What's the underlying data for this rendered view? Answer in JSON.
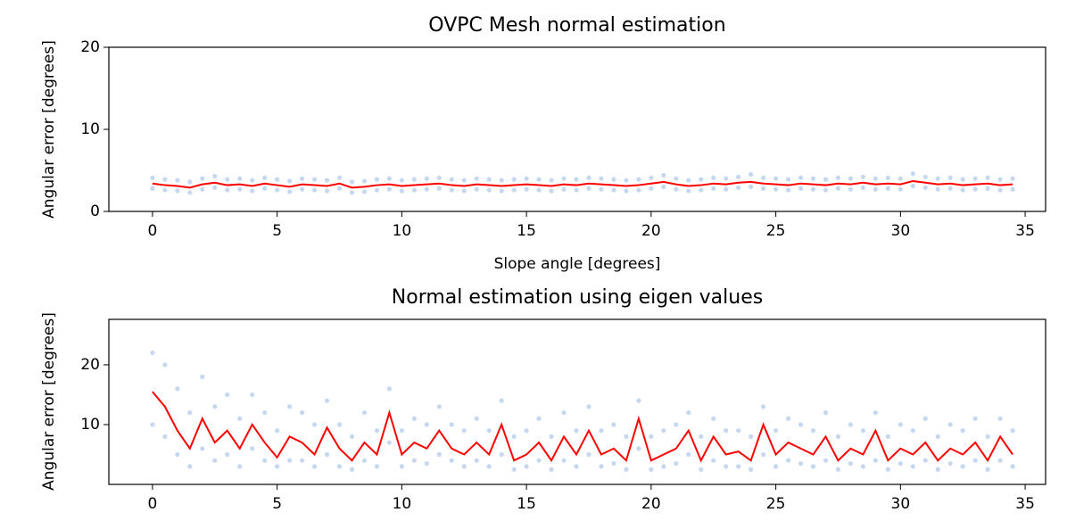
{
  "chart_data": [
    {
      "type": "line",
      "title": "OVPC Mesh normal estimation",
      "xlabel": "Slope angle [degrees]",
      "ylabel": "Angular error [degrees]",
      "xlim": [
        -1.75,
        35.82
      ],
      "ylim": [
        0,
        20
      ],
      "xticks": [
        0,
        5,
        10,
        15,
        20,
        25,
        30,
        35
      ],
      "yticks": [
        0,
        10,
        20
      ],
      "x": [
        0,
        0.5,
        1,
        1.5,
        2,
        2.5,
        3,
        3.5,
        4,
        4.5,
        5,
        5.5,
        6,
        6.5,
        7,
        7.5,
        8,
        8.5,
        9,
        9.5,
        10,
        10.5,
        11,
        11.5,
        12,
        12.5,
        13,
        13.5,
        14,
        14.5,
        15,
        15.5,
        16,
        16.5,
        17,
        17.5,
        18,
        18.5,
        19,
        19.5,
        20,
        20.5,
        21,
        21.5,
        22,
        22.5,
        23,
        23.5,
        24,
        24.5,
        25,
        25.5,
        26,
        26.5,
        27,
        27.5,
        28,
        28.5,
        29,
        29.5,
        30,
        30.5,
        31,
        31.5,
        32,
        32.5,
        33,
        33.5,
        34,
        34.5
      ],
      "series": [
        {
          "type": "scatter",
          "color": "#aec7e8",
          "values": [
            4.1,
            3.9,
            3.8,
            3.6,
            4.0,
            4.3,
            3.9,
            4.0,
            3.8,
            4.1,
            3.9,
            3.7,
            4.0,
            3.9,
            3.8,
            4.1,
            3.6,
            3.7,
            3.9,
            4.0,
            3.8,
            3.9,
            4.0,
            4.1,
            3.9,
            3.8,
            4.0,
            3.9,
            3.8,
            3.9,
            4.0,
            3.9,
            3.8,
            4.0,
            3.9,
            4.1,
            4.0,
            3.9,
            3.8,
            3.9,
            4.1,
            4.4,
            4.0,
            3.8,
            3.9,
            4.1,
            4.0,
            4.2,
            4.5,
            4.1,
            4.0,
            3.9,
            4.1,
            4.0,
            3.9,
            4.1,
            4.0,
            4.2,
            4.0,
            4.1,
            4.0,
            4.6,
            4.2,
            4.0,
            4.1,
            3.9,
            4.0,
            4.1,
            3.9,
            4.0
          ]
        },
        {
          "type": "scatter",
          "color": "#aec7e8",
          "values": [
            2.8,
            2.6,
            2.5,
            2.3,
            2.7,
            2.9,
            2.6,
            2.7,
            2.5,
            2.8,
            2.6,
            2.4,
            2.7,
            2.6,
            2.5,
            2.8,
            2.3,
            2.4,
            2.6,
            2.7,
            2.5,
            2.6,
            2.7,
            2.8,
            2.6,
            2.5,
            2.7,
            2.6,
            2.5,
            2.6,
            2.7,
            2.6,
            2.5,
            2.7,
            2.6,
            2.8,
            2.7,
            2.6,
            2.5,
            2.6,
            2.8,
            3.0,
            2.7,
            2.5,
            2.6,
            2.8,
            2.7,
            2.9,
            3.0,
            2.8,
            2.7,
            2.6,
            2.8,
            2.7,
            2.6,
            2.8,
            2.7,
            2.9,
            2.7,
            2.8,
            2.7,
            3.1,
            2.9,
            2.7,
            2.8,
            2.6,
            2.7,
            2.8,
            2.6,
            2.7
          ]
        },
        {
          "type": "line",
          "color": "#ff0000",
          "values": [
            3.4,
            3.2,
            3.1,
            2.9,
            3.3,
            3.5,
            3.2,
            3.3,
            3.1,
            3.4,
            3.2,
            3.0,
            3.3,
            3.2,
            3.1,
            3.4,
            2.9,
            3.0,
            3.2,
            3.3,
            3.1,
            3.2,
            3.3,
            3.4,
            3.2,
            3.1,
            3.3,
            3.2,
            3.1,
            3.2,
            3.3,
            3.2,
            3.1,
            3.3,
            3.2,
            3.4,
            3.3,
            3.2,
            3.1,
            3.2,
            3.4,
            3.6,
            3.3,
            3.1,
            3.2,
            3.4,
            3.3,
            3.5,
            3.6,
            3.4,
            3.3,
            3.2,
            3.4,
            3.3,
            3.2,
            3.4,
            3.3,
            3.5,
            3.3,
            3.4,
            3.3,
            3.7,
            3.5,
            3.3,
            3.4,
            3.2,
            3.3,
            3.4,
            3.2,
            3.3
          ]
        }
      ]
    },
    {
      "type": "line",
      "title": "Normal estimation using eigen values",
      "ylabel": "Angular error [degrees]",
      "xlim": [
        -1.75,
        35.82
      ],
      "ylim": [
        0,
        27.6
      ],
      "xticks": [
        0,
        5,
        10,
        15,
        20,
        25,
        30,
        35
      ],
      "yticks": [
        10,
        20
      ],
      "x": [
        0,
        0.5,
        1,
        1.5,
        2,
        2.5,
        3,
        3.5,
        4,
        4.5,
        5,
        5.5,
        6,
        6.5,
        7,
        7.5,
        8,
        8.5,
        9,
        9.5,
        10,
        10.5,
        11,
        11.5,
        12,
        12.5,
        13,
        13.5,
        14,
        14.5,
        15,
        15.5,
        16,
        16.5,
        17,
        17.5,
        18,
        18.5,
        19,
        19.5,
        20,
        20.5,
        21,
        21.5,
        22,
        22.5,
        23,
        23.5,
        24,
        24.5,
        25,
        25.5,
        26,
        26.5,
        27,
        27.5,
        28,
        28.5,
        29,
        29.5,
        30,
        30.5,
        31,
        31.5,
        32,
        32.5,
        33,
        33.5,
        34,
        34.5
      ],
      "series": [
        {
          "type": "scatter",
          "color": "#aec7e8",
          "values": [
            22,
            20,
            16,
            12,
            18,
            13,
            15,
            11,
            15,
            12,
            9,
            13,
            12,
            10,
            14,
            10,
            8,
            12,
            9,
            16,
            9,
            11,
            10,
            13,
            10,
            9,
            11,
            9,
            14,
            8,
            9,
            11,
            8,
            12,
            9,
            13,
            9,
            10,
            8,
            14,
            8,
            9,
            10,
            12,
            8,
            11,
            9,
            9,
            8,
            13,
            9,
            11,
            10,
            9,
            12,
            8,
            10,
            9,
            12,
            8,
            10,
            9,
            11,
            8,
            10,
            9,
            11,
            8,
            11,
            9
          ]
        },
        {
          "type": "scatter",
          "color": "#aec7e8",
          "values": [
            10,
            8,
            5,
            3,
            6,
            4,
            5,
            3,
            6,
            4,
            3,
            4,
            4,
            3,
            5,
            3,
            2.5,
            4,
            3,
            7,
            3,
            4,
            3.5,
            5,
            4,
            3,
            4,
            3,
            5,
            2.5,
            3,
            4,
            2.5,
            4,
            3,
            5,
            3,
            3.5,
            2.5,
            6,
            2.5,
            3,
            3.5,
            5,
            2.5,
            4,
            3,
            3,
            2.5,
            5,
            3,
            4,
            3.5,
            3,
            4,
            2.5,
            3.5,
            3,
            4,
            2.5,
            3.5,
            3,
            4,
            2.5,
            3.5,
            3,
            4,
            2.5,
            4,
            3
          ]
        },
        {
          "type": "line",
          "color": "#ff0000",
          "values": [
            15.5,
            13,
            9,
            6,
            11,
            7,
            9,
            6,
            10,
            7,
            4.5,
            8,
            7,
            5,
            9.5,
            6,
            4,
            7,
            5,
            12,
            5,
            7,
            6,
            9,
            6,
            5,
            7,
            5,
            10,
            4,
            5,
            7,
            4,
            8,
            5,
            9,
            5,
            6,
            4,
            11,
            4,
            5,
            6,
            9,
            4,
            8,
            5,
            5.5,
            4,
            10,
            5,
            7,
            6,
            5,
            8,
            4,
            6,
            5,
            9,
            4,
            6,
            5,
            7,
            4,
            6,
            5,
            7,
            4,
            8,
            5
          ]
        }
      ]
    }
  ]
}
